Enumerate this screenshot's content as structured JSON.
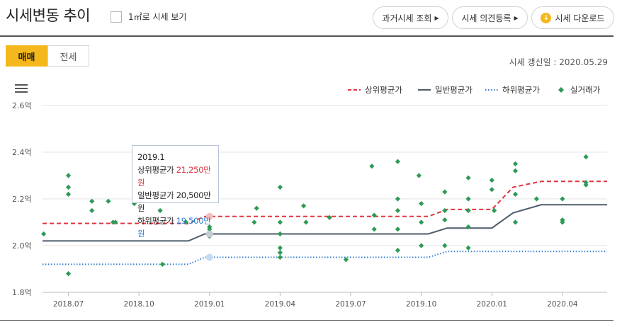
{
  "header": {
    "title": "시세변동 추이",
    "checkbox_label": "1㎡로 시세 보기",
    "buttons": {
      "past": "과거시세 조회",
      "opinion": "시세 의견등록",
      "download": "시세 다운로드"
    }
  },
  "tabs": {
    "active": "매매",
    "inactive": "전세"
  },
  "updated_text": "시세 갱신일 : 2020.05.29",
  "legend": {
    "upper": "상위평균가",
    "general": "일반평균가",
    "lower": "하위평균가",
    "actual": "실거래가"
  },
  "tooltip": {
    "date": "2019.1",
    "upper_label": "상위평균가",
    "upper_value": "21,250만원",
    "general_label": "일반평균가",
    "general_value": "20,500만원",
    "lower_label": "하위평균가",
    "lower_value": "19,500만원"
  },
  "colors": {
    "accent": "#f4b81c",
    "upper": "#e0343e",
    "general": "#4e5d6c",
    "lower": "#2f7fd3",
    "actual": "#2e9a55"
  },
  "chart_data": {
    "type": "line",
    "y_unit": "억",
    "ylim": [
      1.8,
      2.6
    ],
    "y_ticks": [
      1.8,
      2.0,
      2.2,
      2.4,
      2.6
    ],
    "y_tick_labels": [
      "1.8억",
      "2.0억",
      "2.2억",
      "2.4억",
      "2.6억"
    ],
    "x_tick_labels": [
      "2018.07",
      "2018.10",
      "2019.01",
      "2019.04",
      "2019.07",
      "2019.10",
      "2020.01",
      "2020.04"
    ],
    "x_tick_months": [
      6,
      9,
      12,
      15,
      18,
      21,
      24,
      27
    ],
    "x_range_months": [
      4.9,
      28.9
    ],
    "grid": true,
    "legend_position": "top-right",
    "series": [
      {
        "name": "상위평균가",
        "style": "dashed",
        "points": [
          [
            4.9,
            2.095
          ],
          [
            11.1,
            2.095
          ],
          [
            11.8,
            2.125
          ],
          [
            21.3,
            2.125
          ],
          [
            22.1,
            2.155
          ],
          [
            24.0,
            2.155
          ],
          [
            24.9,
            2.25
          ],
          [
            26.1,
            2.275
          ],
          [
            28.9,
            2.275
          ]
        ]
      },
      {
        "name": "일반평균가",
        "style": "solid",
        "points": [
          [
            4.9,
            2.02
          ],
          [
            11.1,
            2.02
          ],
          [
            11.8,
            2.05
          ],
          [
            21.3,
            2.05
          ],
          [
            22.1,
            2.075
          ],
          [
            24.0,
            2.075
          ],
          [
            24.9,
            2.14
          ],
          [
            26.1,
            2.175
          ],
          [
            28.9,
            2.175
          ]
        ]
      },
      {
        "name": "하위평균가",
        "style": "dotted",
        "points": [
          [
            4.9,
            1.92
          ],
          [
            11.1,
            1.92
          ],
          [
            11.8,
            1.95
          ],
          [
            21.3,
            1.95
          ],
          [
            22.1,
            1.975
          ],
          [
            28.9,
            1.975
          ]
        ]
      }
    ],
    "scatter": {
      "name": "실거래가",
      "points": [
        [
          4.95,
          2.05
        ],
        [
          6.0,
          2.3
        ],
        [
          6.0,
          2.25
        ],
        [
          6.0,
          2.22
        ],
        [
          6.0,
          1.88
        ],
        [
          7.0,
          2.15
        ],
        [
          7.0,
          2.19
        ],
        [
          7.7,
          2.19
        ],
        [
          7.9,
          2.1
        ],
        [
          8.0,
          2.1
        ],
        [
          8.8,
          2.18
        ],
        [
          9.9,
          2.15
        ],
        [
          10.0,
          1.92
        ],
        [
          11.0,
          2.1
        ],
        [
          12.0,
          2.08
        ],
        [
          12.0,
          2.07
        ],
        [
          12.0,
          2.06
        ],
        [
          12.0,
          2.04
        ],
        [
          13.9,
          2.1
        ],
        [
          14.0,
          2.16
        ],
        [
          15.0,
          2.25
        ],
        [
          15.0,
          2.1
        ],
        [
          15.0,
          2.05
        ],
        [
          15.0,
          1.99
        ],
        [
          15.0,
          1.97
        ],
        [
          15.0,
          1.95
        ],
        [
          16.0,
          2.17
        ],
        [
          16.1,
          2.1
        ],
        [
          17.1,
          2.12
        ],
        [
          17.8,
          1.94
        ],
        [
          18.9,
          2.34
        ],
        [
          19.0,
          2.13
        ],
        [
          19.0,
          2.07
        ],
        [
          20.0,
          2.36
        ],
        [
          20.0,
          2.2
        ],
        [
          20.0,
          2.15
        ],
        [
          20.0,
          2.07
        ],
        [
          20.0,
          1.98
        ],
        [
          20.9,
          2.3
        ],
        [
          21.0,
          2.18
        ],
        [
          21.0,
          2.1
        ],
        [
          21.0,
          2.0
        ],
        [
          22.0,
          2.23
        ],
        [
          22.0,
          2.15
        ],
        [
          22.0,
          2.11
        ],
        [
          22.0,
          2.0
        ],
        [
          23.0,
          2.29
        ],
        [
          23.0,
          2.2
        ],
        [
          23.0,
          2.15
        ],
        [
          23.0,
          2.08
        ],
        [
          23.0,
          1.99
        ],
        [
          24.0,
          2.28
        ],
        [
          24.0,
          2.24
        ],
        [
          24.1,
          2.15
        ],
        [
          25.0,
          2.35
        ],
        [
          25.0,
          2.32
        ],
        [
          25.0,
          2.22
        ],
        [
          25.0,
          2.1
        ],
        [
          25.9,
          2.2
        ],
        [
          27.0,
          2.2
        ],
        [
          27.0,
          2.11
        ],
        [
          27.0,
          2.1
        ],
        [
          28.0,
          2.38
        ],
        [
          28.0,
          2.27
        ],
        [
          28.0,
          2.26
        ]
      ]
    },
    "highlight_month": 12
  }
}
